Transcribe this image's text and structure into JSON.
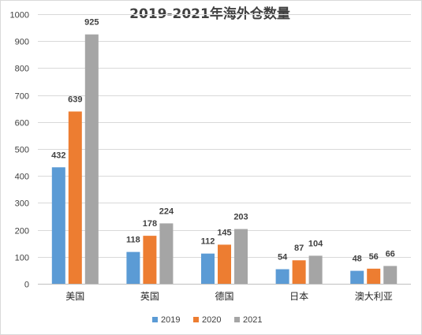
{
  "chart_data": {
    "type": "bar",
    "title": "2019-2021年海外仓数量",
    "xlabel": "",
    "ylabel": "",
    "ylim": [
      0,
      1000
    ],
    "yticks": [
      0,
      100,
      200,
      300,
      400,
      500,
      600,
      700,
      800,
      900,
      1000
    ],
    "grid": true,
    "legend_position": "bottom",
    "categories": [
      "美国",
      "英国",
      "德国",
      "日本",
      "澳大利亚"
    ],
    "series": [
      {
        "name": "2019",
        "color": "#5b9bd5",
        "values": [
          432,
          118,
          112,
          54,
          48
        ]
      },
      {
        "name": "2020",
        "color": "#ed7d31",
        "values": [
          639,
          178,
          145,
          87,
          56
        ]
      },
      {
        "name": "2021",
        "color": "#a5a5a5",
        "values": [
          925,
          224,
          203,
          104,
          66
        ]
      }
    ]
  }
}
